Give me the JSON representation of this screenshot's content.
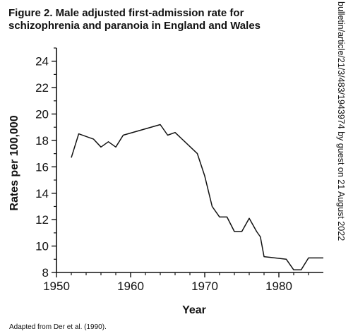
{
  "figure": {
    "title_line1": "Figure 2.  Male adjusted first-admission rate for",
    "title_line2": "schizophrenia and paranoia in England and Wales",
    "source": "Adapted from Der et al. (1990).",
    "watermark": "bulletin/article/21/3/483/1943974 by guest on 21 August 2022"
  },
  "chart_data": {
    "type": "line",
    "title": "Male adjusted first-admission rate for schizophrenia and paranoia in England and Wales",
    "xlabel": "Year",
    "ylabel": "Rates per 100,000",
    "xlim": [
      1950,
      1986
    ],
    "ylim": [
      8,
      25
    ],
    "xticks": [
      1950,
      1960,
      1970,
      1980
    ],
    "yticks": [
      8,
      10,
      12,
      14,
      16,
      18,
      20,
      22,
      24
    ],
    "grid": false,
    "series": [
      {
        "x": [
          1952,
          1953,
          1955,
          1956,
          1957,
          1958,
          1959,
          1964,
          1965,
          1966,
          1969,
          1970,
          1971,
          1972,
          1973,
          1974,
          1975,
          1976,
          1977,
          1977.5,
          1978,
          1981,
          1982,
          1983,
          1984,
          1985,
          1986
        ],
        "y": [
          16.7,
          18.5,
          18.1,
          17.5,
          17.9,
          17.5,
          18.4,
          19.2,
          18.4,
          18.6,
          17.0,
          15.3,
          13.0,
          12.2,
          12.2,
          11.1,
          11.1,
          12.1,
          11.1,
          10.7,
          9.2,
          9.0,
          8.2,
          8.2,
          9.1,
          9.1,
          9.1
        ]
      }
    ]
  }
}
